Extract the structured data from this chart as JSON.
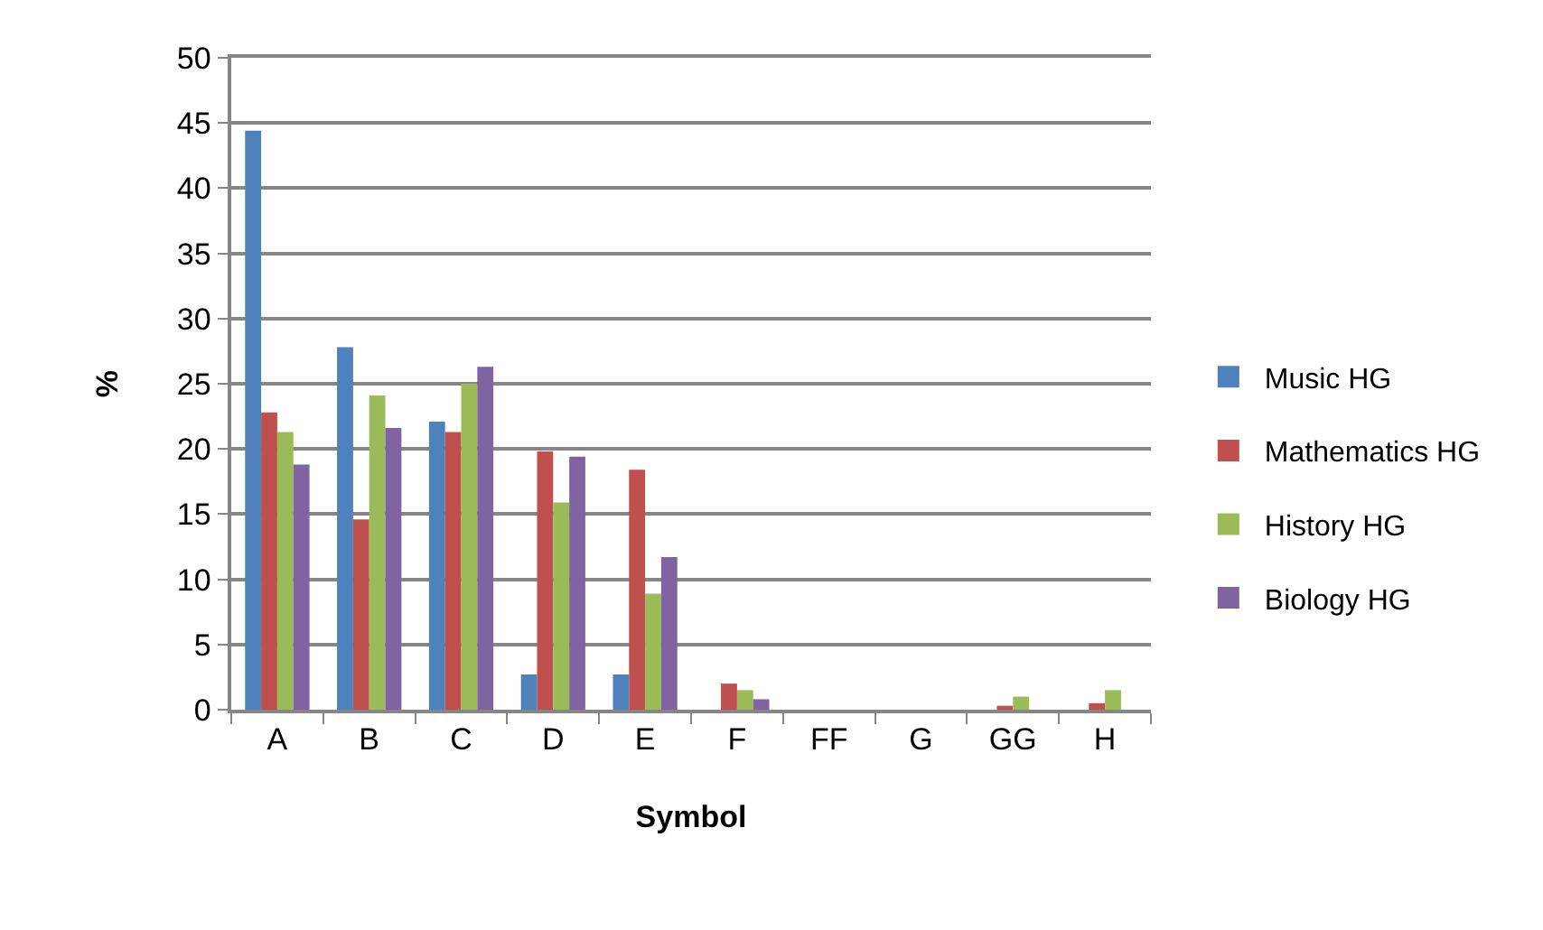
{
  "chart_data": {
    "type": "bar",
    "xlabel": "Symbol",
    "ylabel": "%",
    "categories": [
      "A",
      "B",
      "C",
      "D",
      "E",
      "F",
      "FF",
      "G",
      "GG",
      "H"
    ],
    "series": [
      {
        "name": "Music HG",
        "color": "#4f81bd",
        "values": [
          44.4,
          27.8,
          22.1,
          2.7,
          2.7,
          0,
          0,
          0,
          0,
          0
        ]
      },
      {
        "name": "Mathematics HG",
        "color": "#c0504d",
        "values": [
          22.8,
          14.6,
          21.3,
          19.8,
          18.4,
          2.0,
          0,
          0,
          0.3,
          0.5
        ]
      },
      {
        "name": "History HG",
        "color": "#9bbb59",
        "values": [
          21.3,
          24.1,
          25.0,
          15.9,
          8.9,
          1.5,
          0,
          0,
          1.0,
          1.5
        ]
      },
      {
        "name": "Biology HG",
        "color": "#8064a2",
        "values": [
          18.8,
          21.6,
          26.3,
          19.4,
          11.7,
          0.8,
          0,
          0,
          0,
          0
        ]
      }
    ],
    "ylim": [
      0,
      50
    ],
    "yticks": [
      0,
      5,
      10,
      15,
      20,
      25,
      30,
      35,
      40,
      45,
      50
    ],
    "grid": "y",
    "legend": "right"
  }
}
